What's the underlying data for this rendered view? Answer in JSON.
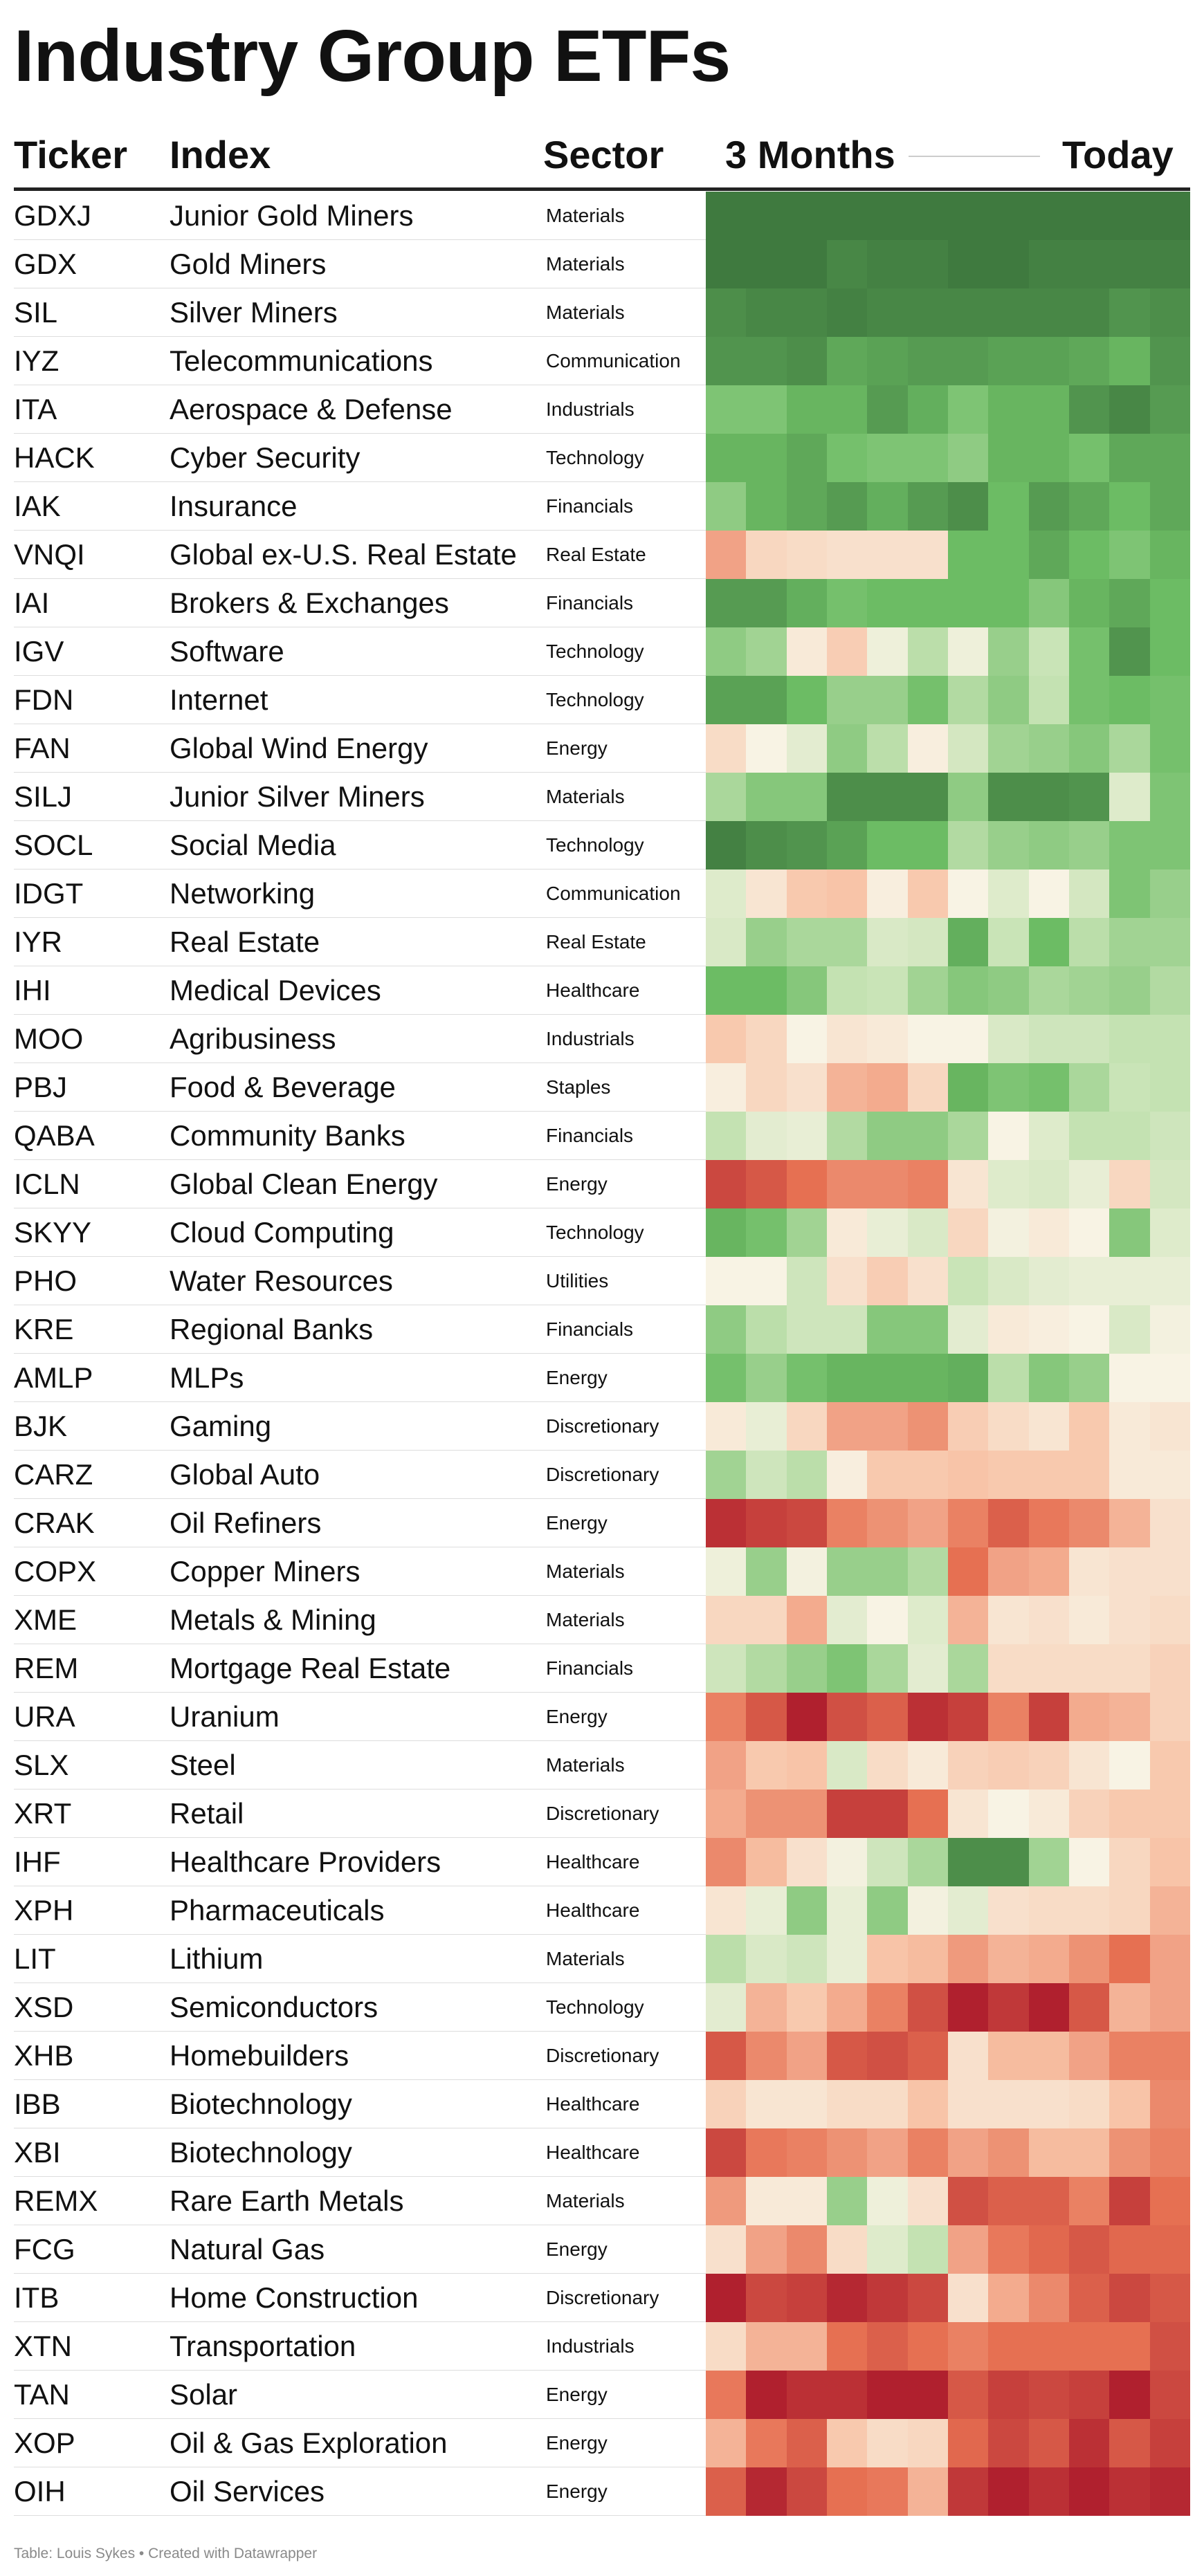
{
  "title": "Industry Group ETFs",
  "headers": {
    "ticker": "Ticker",
    "index": "Index",
    "sector": "Sector",
    "period_start": "3 Months",
    "period_end": "Today"
  },
  "footer": "Table: Louis Sykes • Created with Datawrapper",
  "colors": {
    "strong_green": "#3f7a3f",
    "neutral": "#f8f3e4",
    "strong_red": "#b0202e"
  },
  "chart_data": {
    "type": "heatmap",
    "x": [
      "3 Months",
      "",
      "",
      "",
      "",
      "",
      "",
      "",
      "",
      "",
      "",
      "Today"
    ],
    "scale": "diverging: green = strongest, cream = neutral, red = weakest",
    "rows": [
      {
        "ticker": "GDXJ",
        "index": "Junior Gold Miners",
        "sector": "Materials",
        "values": [
          3,
          3,
          3,
          3,
          3,
          3,
          3,
          3,
          3,
          3,
          3,
          3
        ]
      },
      {
        "ticker": "GDX",
        "index": "Gold Miners",
        "sector": "Materials",
        "values": [
          3,
          3,
          3,
          2.8,
          2.9,
          2.9,
          3,
          3,
          2.9,
          2.9,
          2.9,
          2.9
        ]
      },
      {
        "ticker": "SIL",
        "index": "Silver Miners",
        "sector": "Materials",
        "values": [
          2.7,
          2.8,
          2.8,
          2.9,
          2.8,
          2.8,
          2.8,
          2.8,
          2.8,
          2.8,
          2.6,
          2.7
        ]
      },
      {
        "ticker": "IYZ",
        "index": "Telecommunications",
        "sector": "Communication",
        "values": [
          2.6,
          2.6,
          2.7,
          2.3,
          2.4,
          2.5,
          2.5,
          2.4,
          2.4,
          2.3,
          2.1,
          2.6
        ]
      },
      {
        "ticker": "ITA",
        "index": "Aerospace & Defense",
        "sector": "Industrials",
        "values": [
          1.8,
          1.8,
          2.1,
          2.1,
          2.5,
          2.2,
          1.8,
          2.1,
          2.1,
          2.6,
          2.8,
          2.5
        ]
      },
      {
        "ticker": "HACK",
        "index": "Cyber Security",
        "sector": "Technology",
        "values": [
          2.1,
          2.1,
          2.3,
          1.9,
          1.8,
          1.8,
          1.6,
          2.1,
          2.1,
          1.9,
          2.3,
          2.3
        ]
      },
      {
        "ticker": "IAK",
        "index": "Insurance",
        "sector": "Financials",
        "values": [
          1.6,
          2.1,
          2.3,
          2.5,
          2.2,
          2.5,
          2.7,
          2,
          2.5,
          2.3,
          2,
          2.3
        ]
      },
      {
        "ticker": "VNQI",
        "index": "Global ex-U.S. Real Estate",
        "sector": "Real Estate",
        "values": [
          -1.4,
          -0.6,
          -0.5,
          -0.4,
          -0.4,
          -0.4,
          2,
          2,
          2.3,
          2,
          1.8,
          2.1
        ]
      },
      {
        "ticker": "IAI",
        "index": "Brokers & Exchanges",
        "sector": "Financials",
        "values": [
          2.5,
          2.5,
          2.2,
          1.9,
          2,
          2,
          2,
          2,
          1.7,
          2.1,
          2.3,
          2
        ]
      },
      {
        "ticker": "IGV",
        "index": "Software",
        "sector": "Technology",
        "values": [
          1.6,
          1.4,
          -0.2,
          -0.8,
          0.2,
          1.1,
          0.2,
          1.5,
          0.9,
          1.9,
          2.6,
          2
        ]
      },
      {
        "ticker": "FDN",
        "index": "Internet",
        "sector": "Technology",
        "values": [
          2.4,
          2.4,
          2,
          1.5,
          1.5,
          1.9,
          1.2,
          1.6,
          1,
          1.9,
          2,
          1.9
        ]
      },
      {
        "ticker": "FAN",
        "index": "Global Wind Energy",
        "sector": "Energy",
        "values": [
          -0.5,
          0,
          0.4,
          1.6,
          1.1,
          -0.1,
          0.7,
          1.4,
          1.5,
          1.7,
          1.3,
          1.9
        ]
      },
      {
        "ticker": "SILJ",
        "index": "Junior Silver Miners",
        "sector": "Materials",
        "values": [
          1.3,
          1.7,
          1.7,
          2.7,
          2.7,
          2.7,
          1.6,
          2.7,
          2.7,
          2.6,
          0.5,
          1.8
        ]
      },
      {
        "ticker": "SOCL",
        "index": "Social Media",
        "sector": "Technology",
        "values": [
          2.9,
          2.7,
          2.6,
          2.4,
          2,
          2,
          1.2,
          1.5,
          1.6,
          1.5,
          1.8,
          1.8
        ]
      },
      {
        "ticker": "IDGT",
        "index": "Networking",
        "sector": "Communication",
        "values": [
          0.5,
          -0.3,
          -0.9,
          -1,
          -0.1,
          -0.9,
          0,
          0.5,
          0,
          0.7,
          1.8,
          1.5
        ]
      },
      {
        "ticker": "IYR",
        "index": "Real Estate",
        "sector": "Real Estate",
        "values": [
          0.6,
          1.5,
          1.3,
          1.3,
          0.6,
          0.7,
          2.2,
          0.9,
          2,
          1.1,
          1.4,
          1.4
        ]
      },
      {
        "ticker": "IHI",
        "index": "Medical Devices",
        "sector": "Healthcare",
        "values": [
          2,
          2,
          1.7,
          1,
          0.9,
          1.4,
          1.7,
          1.6,
          1.3,
          1.4,
          1.5,
          1.2
        ]
      },
      {
        "ticker": "MOO",
        "index": "Agribusiness",
        "sector": "Industrials",
        "values": [
          -0.9,
          -0.6,
          0,
          -0.3,
          -0.2,
          0,
          0,
          0.6,
          0.8,
          0.8,
          1,
          1
        ]
      },
      {
        "ticker": "PBJ",
        "index": "Food & Beverage",
        "sector": "Staples",
        "values": [
          -0.1,
          -0.6,
          -0.4,
          -1.2,
          -1.3,
          -0.6,
          2.1,
          1.8,
          1.9,
          1.3,
          0.9,
          1
        ]
      },
      {
        "ticker": "QABA",
        "index": "Community Banks",
        "sector": "Financials",
        "values": [
          1,
          0.4,
          0.3,
          1.2,
          1.6,
          1.6,
          1.3,
          0,
          0.5,
          1,
          1,
          0.8
        ]
      },
      {
        "ticker": "ICLN",
        "index": "Global Clean Energy",
        "sector": "Energy",
        "values": [
          -2.5,
          -2.3,
          -2,
          -1.7,
          -1.7,
          -1.8,
          -0.3,
          0.5,
          0.6,
          0.3,
          -0.6,
          0.7
        ]
      },
      {
        "ticker": "SKYY",
        "index": "Cloud Computing",
        "sector": "Technology",
        "values": [
          2.1,
          1.9,
          1.4,
          -0.2,
          0.3,
          0.6,
          -0.6,
          0.1,
          -0.2,
          0,
          1.7,
          0.5
        ]
      },
      {
        "ticker": "PHO",
        "index": "Water Resources",
        "sector": "Utilities",
        "values": [
          0,
          0,
          0.8,
          -0.4,
          -0.8,
          -0.4,
          0.9,
          0.6,
          0.4,
          0.3,
          0.3,
          0.3
        ]
      },
      {
        "ticker": "KRE",
        "index": "Regional Banks",
        "sector": "Financials",
        "values": [
          1.6,
          1.1,
          0.8,
          0.8,
          1.7,
          1.7,
          0.4,
          -0.2,
          -0.1,
          0,
          0.6,
          0.1
        ]
      },
      {
        "ticker": "AMLP",
        "index": "MLPs",
        "sector": "Energy",
        "values": [
          1.9,
          1.5,
          1.9,
          2.1,
          2.1,
          2.1,
          2.2,
          1.1,
          1.7,
          1.5,
          0,
          0
        ]
      },
      {
        "ticker": "BJK",
        "index": "Gaming",
        "sector": "Discretionary",
        "values": [
          -0.2,
          0.3,
          -0.6,
          -1.4,
          -1.4,
          -1.6,
          -0.8,
          -0.5,
          -0.3,
          -0.9,
          -0.2,
          -0.3
        ]
      },
      {
        "ticker": "CARZ",
        "index": "Global Auto",
        "sector": "Discretionary",
        "values": [
          1.4,
          0.8,
          1.1,
          -0.1,
          -0.9,
          -0.9,
          -1,
          -0.9,
          -0.9,
          -0.9,
          -0.2,
          -0.2
        ]
      },
      {
        "ticker": "CRAK",
        "index": "Oil Refiners",
        "sector": "Energy",
        "values": [
          -2.8,
          -2.6,
          -2.5,
          -1.8,
          -1.6,
          -1.4,
          -1.8,
          -2.2,
          -1.9,
          -1.7,
          -1.2,
          -0.4
        ]
      },
      {
        "ticker": "COPX",
        "index": "Copper Miners",
        "sector": "Materials",
        "values": [
          0.2,
          1.5,
          0.1,
          1.5,
          1.5,
          1.2,
          -2,
          -1.4,
          -1.3,
          -0.3,
          -0.4,
          -0.4
        ]
      },
      {
        "ticker": "XME",
        "index": "Metals & Mining",
        "sector": "Materials",
        "values": [
          -0.6,
          -0.6,
          -1.3,
          0.4,
          0,
          0.5,
          -1.2,
          -0.3,
          -0.4,
          -0.2,
          -0.4,
          -0.5
        ]
      },
      {
        "ticker": "REM",
        "index": "Mortgage Real Estate",
        "sector": "Financials",
        "values": [
          0.8,
          1.2,
          1.5,
          1.8,
          1.3,
          0.4,
          1.3,
          -0.5,
          -0.5,
          -0.5,
          -0.5,
          -0.7
        ]
      },
      {
        "ticker": "URA",
        "index": "Uranium",
        "sector": "Energy",
        "values": [
          -1.8,
          -2.3,
          -3,
          -2.4,
          -2.2,
          -2.8,
          -2.6,
          -1.8,
          -2.6,
          -1.3,
          -1.2,
          -0.7
        ]
      },
      {
        "ticker": "SLX",
        "index": "Steel",
        "sector": "Materials",
        "values": [
          -1.4,
          -0.9,
          -1,
          0.6,
          -0.5,
          -0.2,
          -0.7,
          -0.8,
          -0.7,
          -0.3,
          0,
          -0.9
        ]
      },
      {
        "ticker": "XRT",
        "index": "Retail",
        "sector": "Discretionary",
        "values": [
          -1.3,
          -1.6,
          -1.6,
          -2.6,
          -2.6,
          -2,
          -0.3,
          0,
          -0.2,
          -0.7,
          -0.9,
          -0.9
        ]
      },
      {
        "ticker": "IHF",
        "index": "Healthcare Providers",
        "sector": "Healthcare",
        "values": [
          -1.7,
          -1.1,
          -0.4,
          0.1,
          0.8,
          1.3,
          2.7,
          2.7,
          1.4,
          0,
          -0.6,
          -1
        ]
      },
      {
        "ticker": "XPH",
        "index": "Pharmaceuticals",
        "sector": "Healthcare",
        "values": [
          -0.3,
          0.3,
          1.6,
          0.3,
          1.6,
          0.1,
          0.4,
          -0.4,
          -0.5,
          -0.5,
          -0.6,
          -1.2
        ]
      },
      {
        "ticker": "LIT",
        "index": "Lithium",
        "sector": "Materials",
        "values": [
          1.1,
          0.6,
          0.8,
          0.3,
          -1,
          -1.1,
          -1.5,
          -1.2,
          -1.3,
          -1.6,
          -2,
          -1.4
        ]
      },
      {
        "ticker": "XSD",
        "index": "Semiconductors",
        "sector": "Technology",
        "values": [
          0.4,
          -1.2,
          -0.9,
          -1.3,
          -1.8,
          -2.4,
          -3,
          -2.7,
          -3,
          -2.3,
          -1.2,
          -1.4
        ]
      },
      {
        "ticker": "XHB",
        "index": "Homebuilders",
        "sector": "Discretionary",
        "values": [
          -2.3,
          -1.7,
          -1.4,
          -2.3,
          -2.4,
          -2.2,
          -0.4,
          -1.1,
          -1.1,
          -1.4,
          -1.8,
          -1.8
        ]
      },
      {
        "ticker": "IBB",
        "index": "Biotechnology",
        "sector": "Healthcare",
        "values": [
          -0.7,
          -0.3,
          -0.3,
          -0.5,
          -0.5,
          -1,
          -0.4,
          -0.4,
          -0.4,
          -0.5,
          -1,
          -1.7
        ]
      },
      {
        "ticker": "XBI",
        "index": "Biotechnology",
        "sector": "Healthcare",
        "values": [
          -2.5,
          -1.9,
          -1.8,
          -1.6,
          -1.4,
          -1.8,
          -1.4,
          -1.6,
          -1.1,
          -1.1,
          -1.6,
          -1.8
        ]
      },
      {
        "ticker": "REMX",
        "index": "Rare Earth Metals",
        "sector": "Materials",
        "values": [
          -1.5,
          -0.2,
          -0.2,
          1.5,
          0.2,
          -0.4,
          -2.4,
          -2.2,
          -2.2,
          -1.8,
          -2.6,
          -2
        ]
      },
      {
        "ticker": "FCG",
        "index": "Natural Gas",
        "sector": "Energy",
        "values": [
          -0.4,
          -1.4,
          -1.7,
          -0.5,
          0.5,
          1,
          -1.4,
          -1.9,
          -2.1,
          -2.3,
          -2.1,
          -2.1
        ]
      },
      {
        "ticker": "ITB",
        "index": "Home Construction",
        "sector": "Discretionary",
        "values": [
          -3,
          -2.5,
          -2.6,
          -2.9,
          -2.7,
          -2.5,
          -0.4,
          -1.3,
          -1.7,
          -2.2,
          -2.5,
          -2.3
        ]
      },
      {
        "ticker": "XTN",
        "index": "Transportation",
        "sector": "Industrials",
        "values": [
          -0.5,
          -1.2,
          -1.2,
          -2,
          -2.2,
          -2,
          -1.8,
          -2,
          -2,
          -2,
          -2,
          -2.4
        ]
      },
      {
        "ticker": "TAN",
        "index": "Solar",
        "sector": "Energy",
        "values": [
          -1.9,
          -3,
          -2.8,
          -2.8,
          -3,
          -3,
          -2.3,
          -2.6,
          -2.5,
          -2.6,
          -3,
          -2.5
        ]
      },
      {
        "ticker": "XOP",
        "index": "Oil & Gas Exploration",
        "sector": "Energy",
        "values": [
          -1.2,
          -1.9,
          -2.2,
          -0.9,
          -0.5,
          -0.6,
          -2.1,
          -2.5,
          -2.3,
          -2.8,
          -2.3,
          -2.6
        ]
      },
      {
        "ticker": "OIH",
        "index": "Oil Services",
        "sector": "Energy",
        "values": [
          -2.2,
          -2.9,
          -2.5,
          -2,
          -1.9,
          -1.2,
          -2.7,
          -3,
          -2.8,
          -3,
          -2.8,
          -2.9
        ]
      }
    ]
  }
}
